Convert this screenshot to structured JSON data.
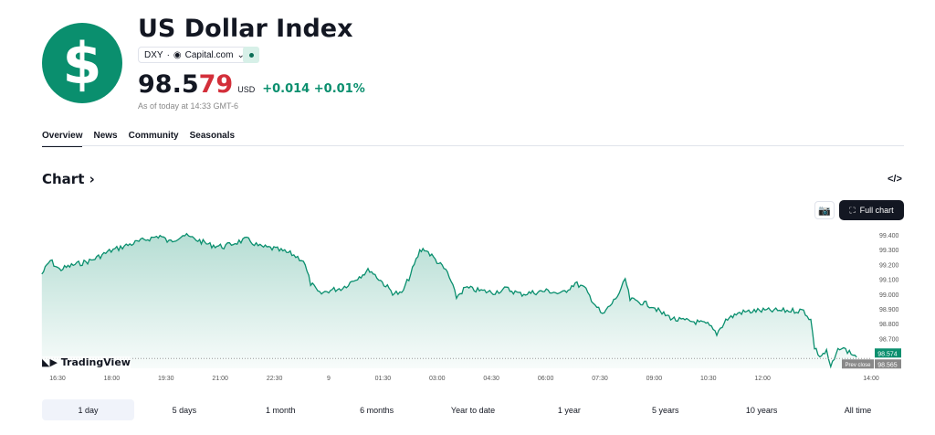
{
  "header": {
    "logo_symbol": "$",
    "title": "US Dollar Index",
    "symbol": "DXY",
    "separator": "·",
    "source": "Capital.com",
    "price_main": "98.5",
    "price_tail": "79",
    "currency": "USD",
    "change": "+0.014",
    "change_pct": "+0.01%",
    "as_of": "As of today at 14:33 GMT-6"
  },
  "tabs": [
    "Overview",
    "News",
    "Community",
    "Seasonals"
  ],
  "chart_section": {
    "title": "Chart",
    "chevron": "›",
    "embed": "</>",
    "full_chart": "Full chart",
    "watermark": "TradingView"
  },
  "ranges": [
    "1 day",
    "5 days",
    "1 month",
    "6 months",
    "Year to date",
    "1 year",
    "5 years",
    "10 years",
    "All time"
  ],
  "colors": {
    "accent": "#0a8f6e",
    "down": "#d32f3a"
  },
  "chart_data": {
    "type": "area",
    "x_unit": "minutes since 16:30",
    "points": [
      [
        -26,
        99.135
      ],
      [
        -12,
        99.227
      ],
      [
        3,
        99.165
      ],
      [
        26,
        99.196
      ],
      [
        56,
        99.227
      ],
      [
        86,
        99.289
      ],
      [
        117,
        99.332
      ],
      [
        147,
        99.369
      ],
      [
        170,
        99.394
      ],
      [
        185,
        99.351
      ],
      [
        208,
        99.4
      ],
      [
        230,
        99.369
      ],
      [
        253,
        99.332
      ],
      [
        276,
        99.32
      ],
      [
        298,
        99.351
      ],
      [
        314,
        99.369
      ],
      [
        336,
        99.32
      ],
      [
        359,
        99.307
      ],
      [
        389,
        99.27
      ],
      [
        408,
        99.227
      ],
      [
        420,
        99.073
      ],
      [
        435,
        99.0
      ],
      [
        450,
        99.023
      ],
      [
        473,
        99.042
      ],
      [
        495,
        99.104
      ],
      [
        518,
        99.165
      ],
      [
        533,
        99.104
      ],
      [
        556,
        99.011
      ],
      [
        571,
        99.0
      ],
      [
        586,
        99.135
      ],
      [
        601,
        99.289
      ],
      [
        609,
        99.307
      ],
      [
        624,
        99.246
      ],
      [
        647,
        99.147
      ],
      [
        662,
        98.98
      ],
      [
        677,
        99.042
      ],
      [
        700,
        99.023
      ],
      [
        723,
        99.011
      ],
      [
        745,
        99.036
      ],
      [
        768,
        99.0
      ],
      [
        791,
        99.011
      ],
      [
        814,
        99.023
      ],
      [
        836,
        99.0
      ],
      [
        859,
        99.073
      ],
      [
        874,
        99.042
      ],
      [
        889,
        98.949
      ],
      [
        904,
        98.857
      ],
      [
        920,
        98.937
      ],
      [
        935,
        99.023
      ],
      [
        942,
        99.104
      ],
      [
        950,
        98.962
      ],
      [
        965,
        98.949
      ],
      [
        988,
        98.918
      ],
      [
        1003,
        98.869
      ],
      [
        1026,
        98.826
      ],
      [
        1056,
        98.814
      ],
      [
        1079,
        98.795
      ],
      [
        1094,
        98.733
      ],
      [
        1109,
        98.826
      ],
      [
        1132,
        98.875
      ],
      [
        1162,
        98.888
      ],
      [
        1192,
        98.888
      ],
      [
        1223,
        98.888
      ],
      [
        1238,
        98.888
      ],
      [
        1250,
        98.826
      ],
      [
        1256,
        98.641
      ],
      [
        1265,
        98.579
      ],
      [
        1276,
        98.61
      ],
      [
        1283,
        98.505
      ],
      [
        1298,
        98.641
      ],
      [
        1314,
        98.61
      ],
      [
        1326,
        98.574
      ]
    ],
    "x_ticks": [
      "16:30",
      "18:00",
      "19:30",
      "21:00",
      "22:30",
      "9",
      "01:30",
      "03:00",
      "04:30",
      "06:00",
      "07:30",
      "09:00",
      "10:30",
      "12:00",
      "14:00"
    ],
    "x_tick_minutes": [
      0,
      90,
      180,
      270,
      360,
      450,
      540,
      630,
      720,
      810,
      900,
      990,
      1080,
      1170,
      1350
    ],
    "y_ticks": [
      "99.400",
      "99.300",
      "99.200",
      "99.100",
      "99.000",
      "98.900",
      "98.800",
      "98.700"
    ],
    "ylim": [
      98.48,
      99.43
    ],
    "last_value": "98.574",
    "prev_close_label": "Prev close",
    "prev_close": "98.565",
    "prev_close_value": 98.565
  }
}
